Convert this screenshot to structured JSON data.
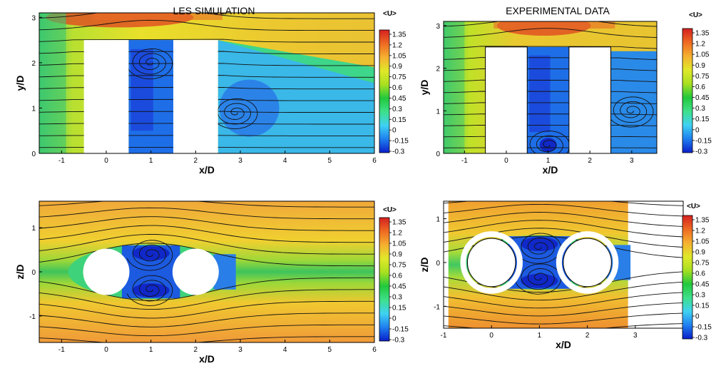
{
  "colorbar": {
    "title": "<U>",
    "ticks": [
      "1.35",
      "1.2",
      "1.05",
      "0.9",
      "0.75",
      "0.6",
      "0.45",
      "0.3",
      "0.15",
      "0",
      "-0.15",
      "-0.3"
    ],
    "range": [
      -0.3,
      1.45
    ],
    "colors": [
      "#0a1fc8",
      "#1f7ff0",
      "#3fd2f2",
      "#3ee08a",
      "#22c83c",
      "#a8e020",
      "#e0e82a",
      "#f5b030",
      "#ee6a22",
      "#d42020"
    ]
  },
  "chart_data": [
    {
      "type": "heatmap",
      "panel": "top-left",
      "title": "LES SIMULATION",
      "xlabel": "x/D",
      "ylabel": "y/D",
      "xlim": [
        -1.5,
        6
      ],
      "ylim": [
        0,
        3.1
      ],
      "xticks": [
        "-1",
        "0",
        "1",
        "2",
        "3",
        "4",
        "5",
        "6"
      ],
      "yticks": [
        "0",
        "1",
        "2",
        "3"
      ],
      "obstacles": [
        {
          "shape": "rect",
          "x": [
            -0.5,
            0.5
          ],
          "y": [
            0,
            2.5
          ]
        },
        {
          "shape": "rect",
          "x": [
            1.5,
            2.5
          ],
          "y": [
            0,
            2.5
          ]
        }
      ],
      "vortices": [
        [
          1.0,
          2.0
        ],
        [
          2.9,
          0.9
        ]
      ]
    },
    {
      "type": "heatmap",
      "panel": "top-right",
      "title": "EXPERIMENTAL DATA",
      "xlabel": "x/D",
      "ylabel": "y/D",
      "xlim": [
        -1.5,
        3.6
      ],
      "ylim": [
        0,
        3.1
      ],
      "xticks": [
        "-1",
        "0",
        "1",
        "2",
        "3"
      ],
      "yticks": [
        "0",
        "1",
        "2",
        "3"
      ],
      "obstacles": [
        {
          "shape": "rect",
          "x": [
            -0.5,
            0.5
          ],
          "y": [
            0,
            2.5
          ]
        },
        {
          "shape": "rect",
          "x": [
            1.5,
            2.5
          ],
          "y": [
            0,
            2.5
          ]
        }
      ],
      "vortices": [
        [
          1.0,
          0.2
        ],
        [
          3.0,
          1.0
        ]
      ]
    },
    {
      "type": "heatmap",
      "panel": "bottom-left",
      "title": "",
      "xlabel": "x/D",
      "ylabel": "z/D",
      "xlim": [
        -1.5,
        6
      ],
      "ylim": [
        -1.6,
        1.6
      ],
      "xticks": [
        "-1",
        "0",
        "1",
        "2",
        "3",
        "4",
        "5",
        "6"
      ],
      "yticks": [
        "1",
        "0",
        "-1"
      ],
      "obstacles": [
        {
          "shape": "circle",
          "cx": 0,
          "cy": 0,
          "r": 0.5
        },
        {
          "shape": "circle",
          "cx": 2,
          "cy": 0,
          "r": 0.5
        }
      ],
      "vortices": [
        [
          1.0,
          0.4
        ],
        [
          1.0,
          -0.4
        ]
      ]
    },
    {
      "type": "heatmap",
      "panel": "bottom-right",
      "title": "",
      "xlabel": "x/D",
      "ylabel": "z/D",
      "xlim": [
        -1,
        4
      ],
      "ylim": [
        -1.5,
        1.4
      ],
      "xticks": [
        "-1",
        "0",
        "1",
        "2",
        "3"
      ],
      "yticks": [
        "1",
        "0",
        "-1"
      ],
      "data_xlim": [
        -0.9,
        2.85
      ],
      "obstacles": [
        {
          "shape": "circle",
          "cx": 0,
          "cy": 0,
          "r": 0.5
        },
        {
          "shape": "circle",
          "cx": 2,
          "cy": 0,
          "r": 0.5
        }
      ],
      "vortices": [
        [
          1.0,
          0.35
        ],
        [
          1.0,
          -0.35
        ]
      ]
    }
  ]
}
